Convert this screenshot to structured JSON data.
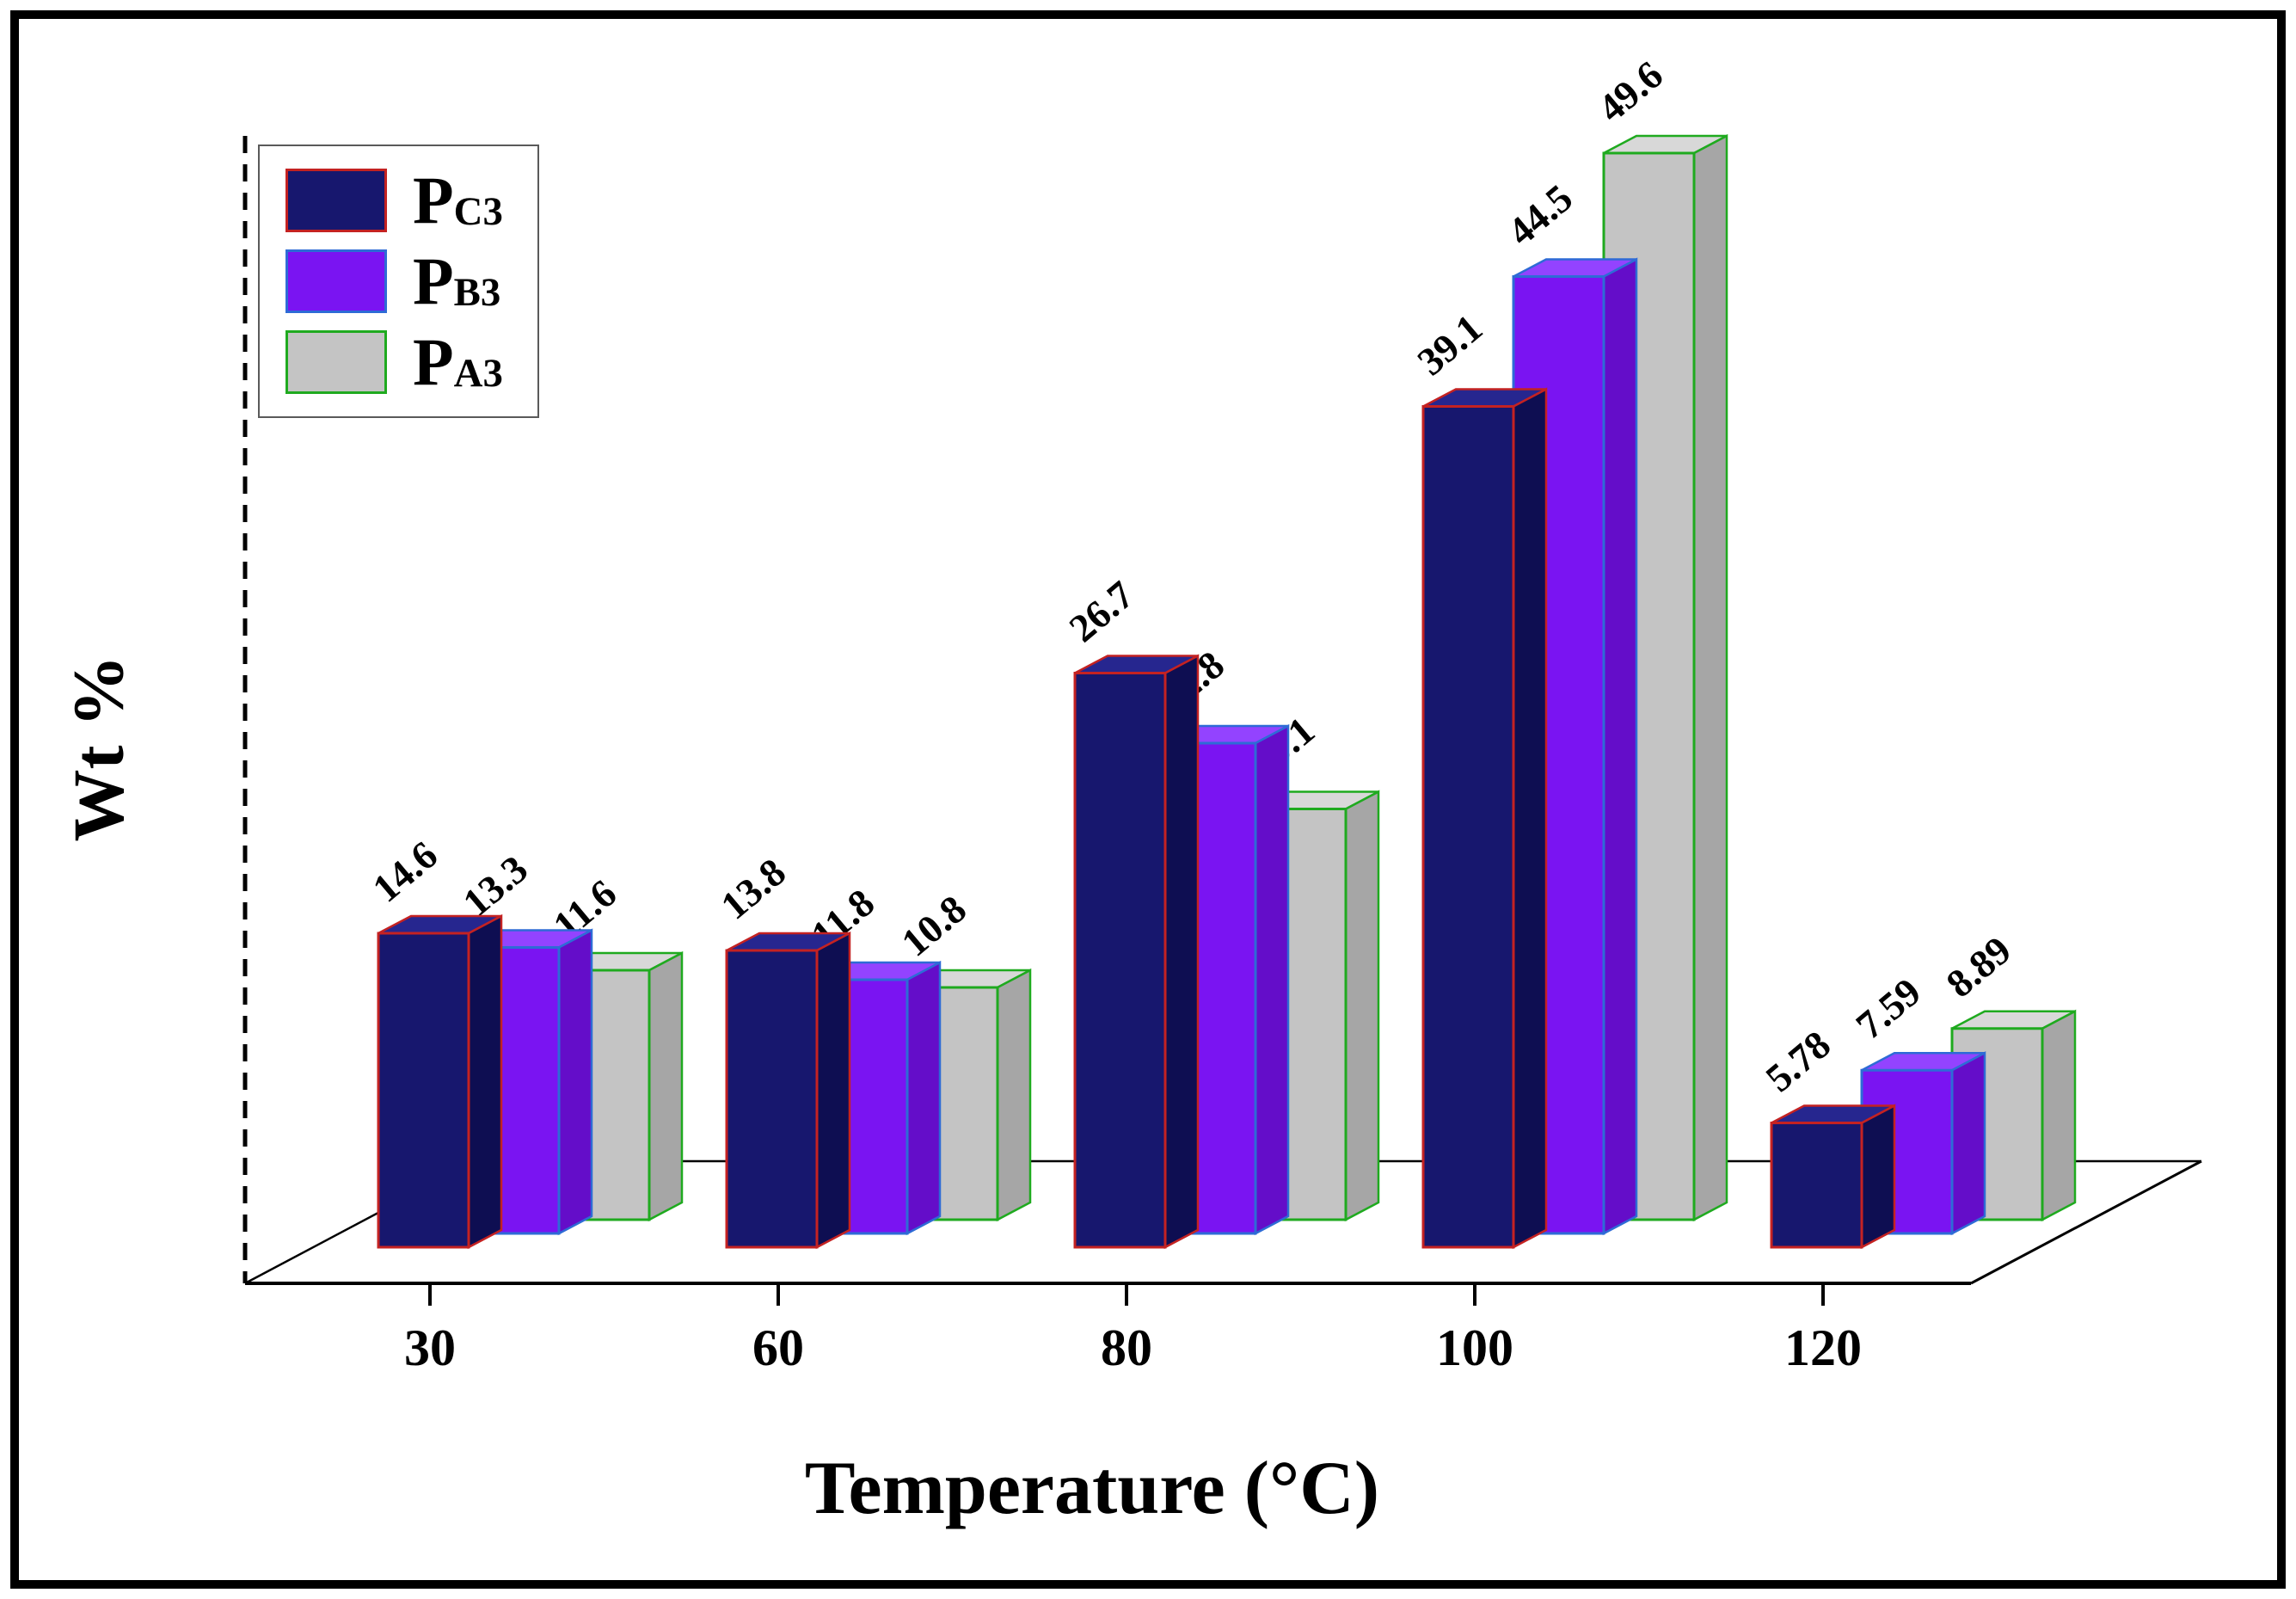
{
  "frame": {
    "border_color": "#000000",
    "background": "#ffffff"
  },
  "chart_data": {
    "type": "bar",
    "projection": "3d",
    "title": "",
    "xlabel": "Temperature (°C)",
    "ylabel": "Wt %",
    "categories": [
      "30",
      "60",
      "80",
      "100",
      "120"
    ],
    "series": [
      {
        "name": "PC3",
        "label_base": "P",
        "label_sub": "C3",
        "values": [
          14.6,
          13.8,
          26.7,
          39.1,
          5.78
        ],
        "fill": "#17176e",
        "fill_top": "#26268f",
        "fill_side": "#0e0e52",
        "stroke": "#c42222"
      },
      {
        "name": "PB3",
        "label_base": "P",
        "label_sub": "B3",
        "values": [
          13.3,
          11.8,
          22.8,
          44.5,
          7.59
        ],
        "fill": "#7a14f2",
        "fill_top": "#9343ff",
        "fill_side": "#640dc9",
        "stroke": "#2e6bd6"
      },
      {
        "name": "PA3",
        "label_base": "P",
        "label_sub": "A3",
        "values": [
          11.6,
          10.8,
          19.1,
          49.6,
          8.89
        ],
        "fill": "#c4c4c4",
        "fill_top": "#d8d8d8",
        "fill_side": "#a6a6a6",
        "stroke": "#1faa1f"
      }
    ],
    "value_label_rotation_deg": -40,
    "legend_position": "top-left",
    "grid": false,
    "y_axis_style": "dashed line, no numeric ticks",
    "axis_color": "#000000",
    "ylim": [
      0,
      52
    ]
  }
}
